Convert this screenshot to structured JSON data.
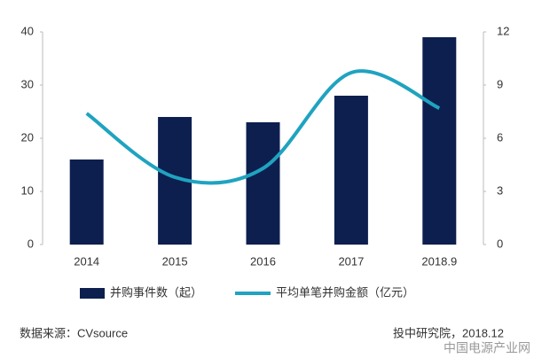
{
  "chart_data": {
    "type": "bar-line",
    "categories": [
      "2014",
      "2015",
      "2016",
      "2017",
      "2018.9"
    ],
    "series": [
      {
        "name": "并购事件数（起）",
        "color": "#0d1f4f",
        "type": "bar",
        "values": [
          16,
          24,
          23,
          28,
          39
        ]
      },
      {
        "name": "平均单笔并购金额（亿元）",
        "color": "#1fa3c0",
        "type": "line",
        "axis": "y2",
        "values": [
          7.4,
          3.8,
          4.3,
          9.7,
          7.7
        ]
      }
    ],
    "ylim": [
      0,
      40
    ],
    "yticks": [
      0,
      10,
      20,
      30,
      40
    ],
    "y2lim": [
      0,
      12
    ],
    "y2ticks": [
      0,
      3,
      6,
      9,
      12
    ],
    "source": "数据来源：CVsource",
    "note": "投中研究院，2018.12",
    "watermark": "中国电源产业网"
  }
}
